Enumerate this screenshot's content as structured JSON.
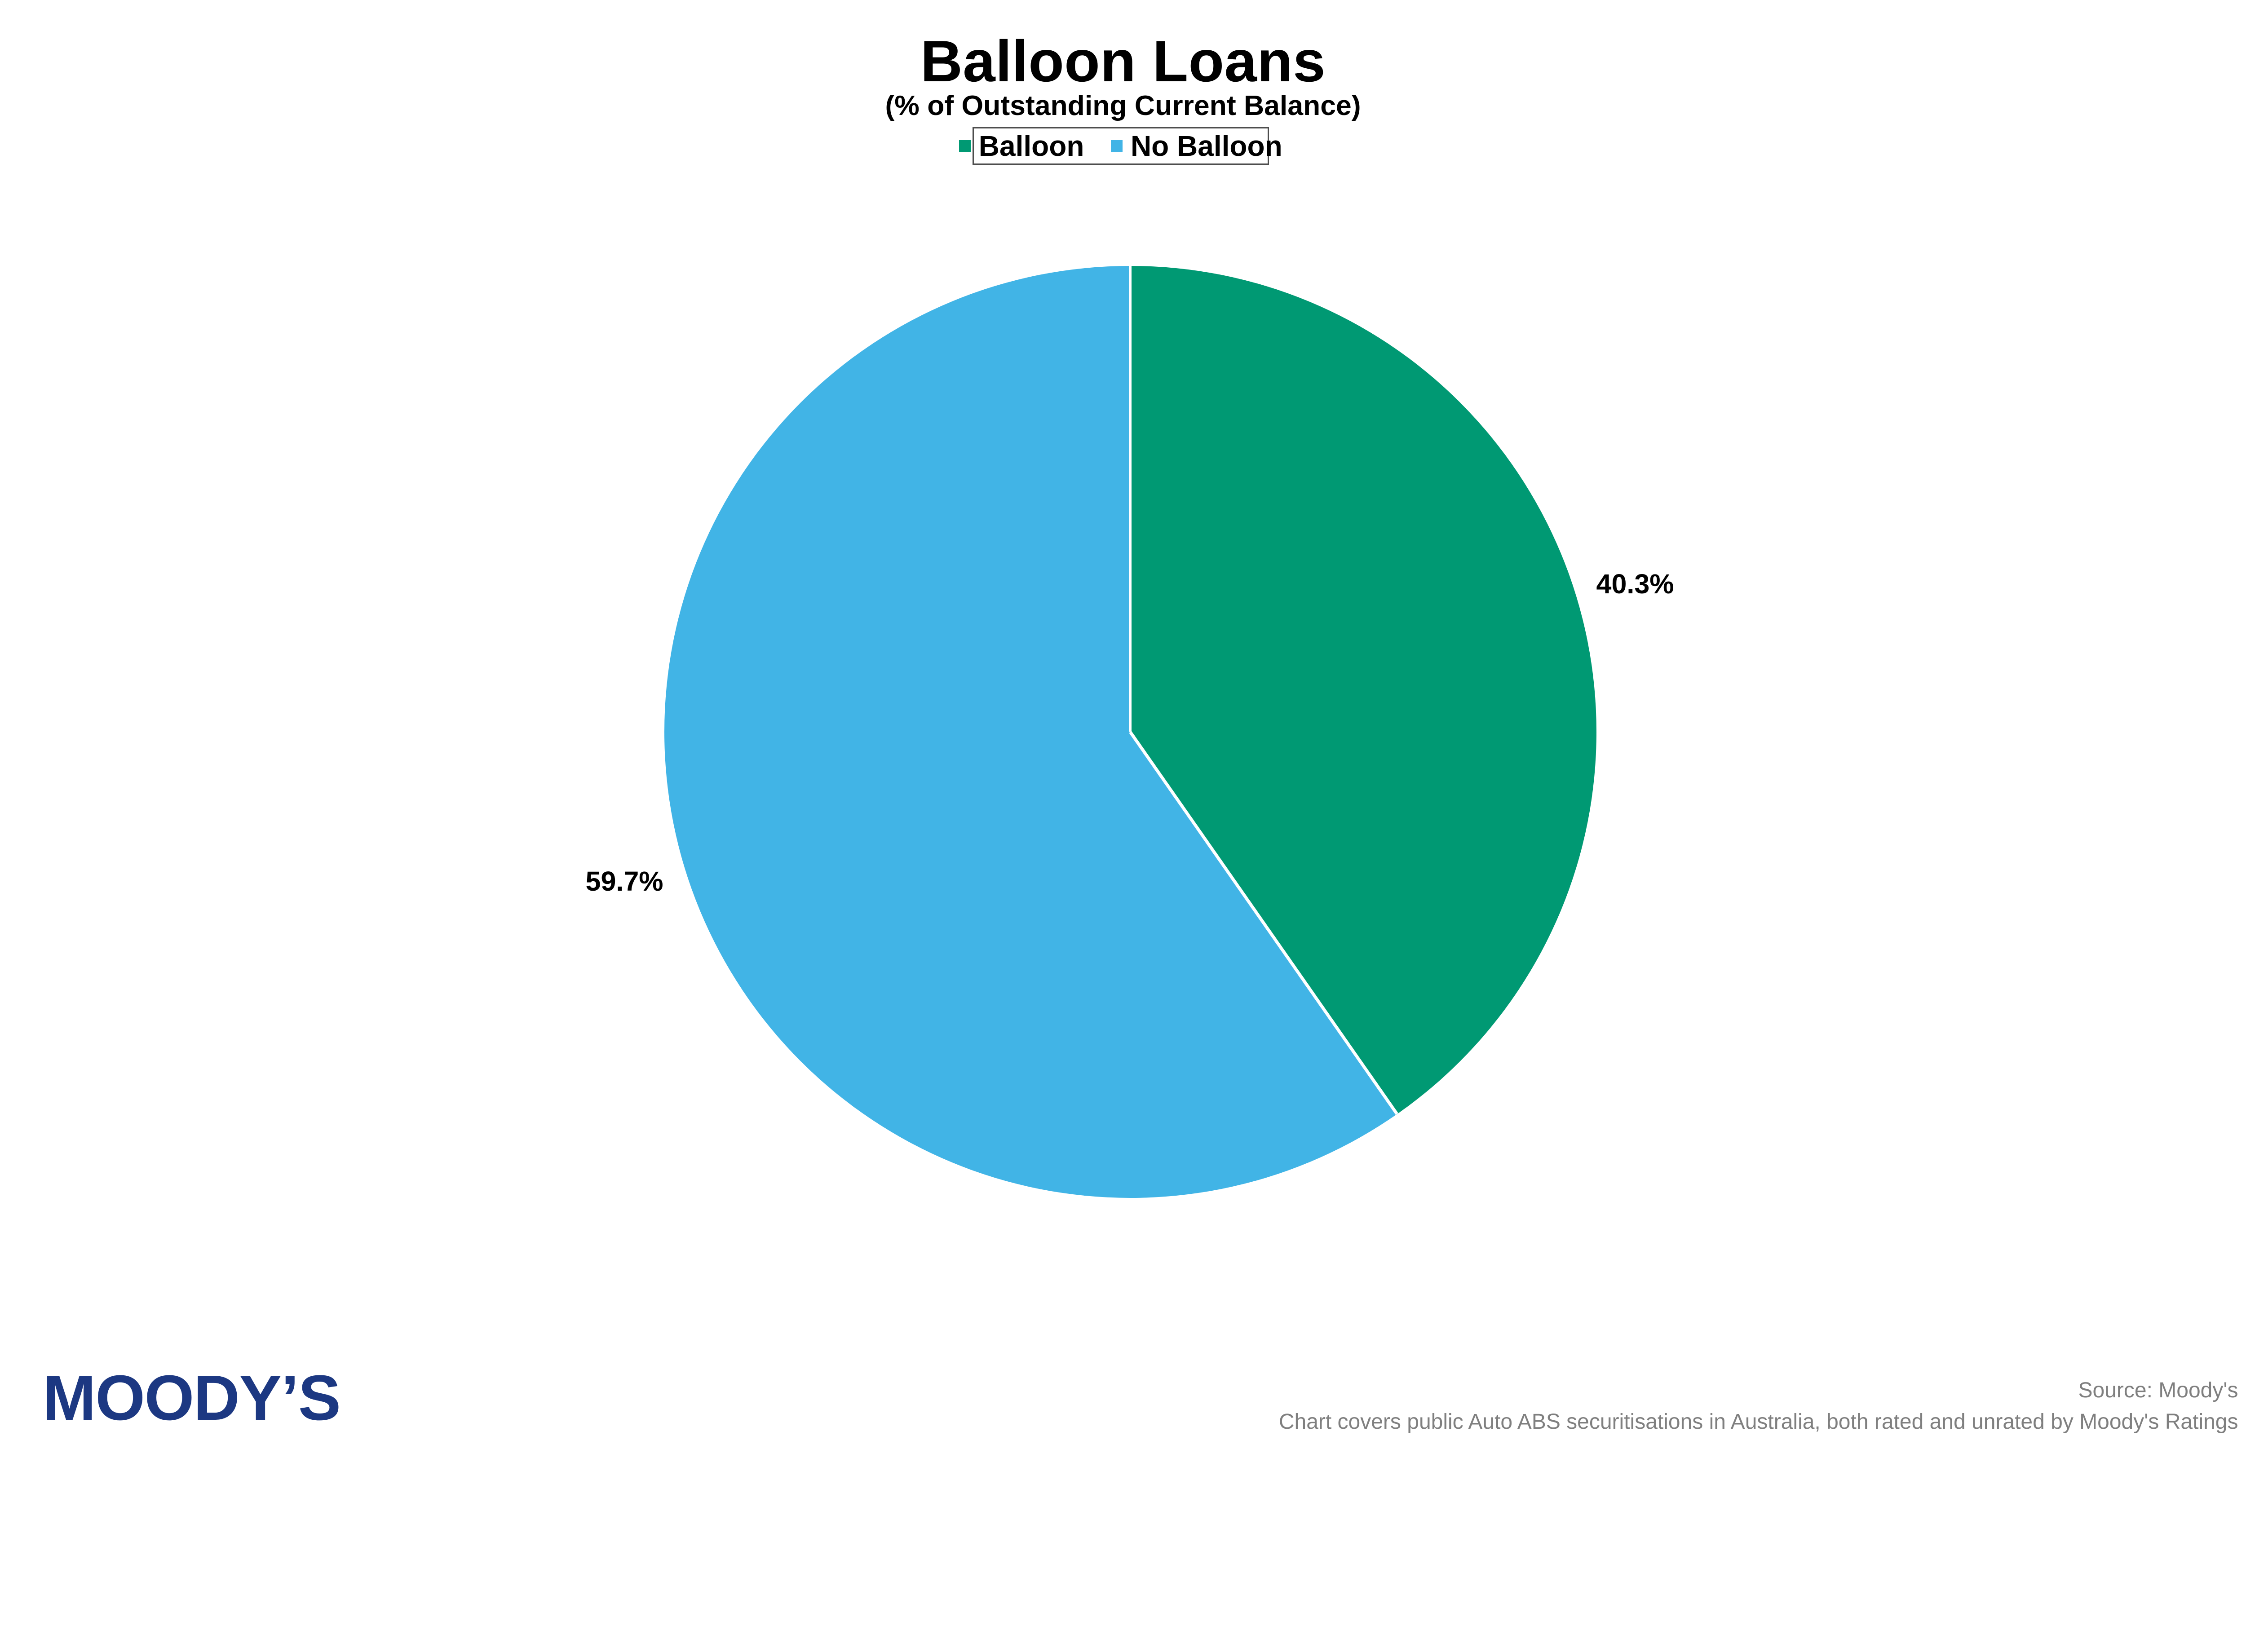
{
  "chart_data": {
    "type": "pie",
    "title": "Balloon Loans",
    "subtitle": "(% of Outstanding Current Balance)",
    "start_angle_deg": 0,
    "direction": "clockwise",
    "legend_position": "top",
    "slices": [
      {
        "label": "Balloon",
        "value": 40.3,
        "data_label": "40.3%",
        "color": "#009973"
      },
      {
        "label": "No Balloon",
        "value": 59.7,
        "data_label": "59.7%",
        "color": "#41b4e6"
      }
    ]
  },
  "legend": {
    "items": [
      {
        "label": "Balloon",
        "color": "#009973"
      },
      {
        "label": "No Balloon",
        "color": "#41b4e6"
      }
    ]
  },
  "footer": {
    "logo_text": "MOODY’S",
    "logo_color": "#1c3882",
    "source_line1": "Source: Moody's",
    "source_line2": "Chart covers public Auto ABS securitisations in Australia, both rated and unrated by Moody's Ratings"
  }
}
